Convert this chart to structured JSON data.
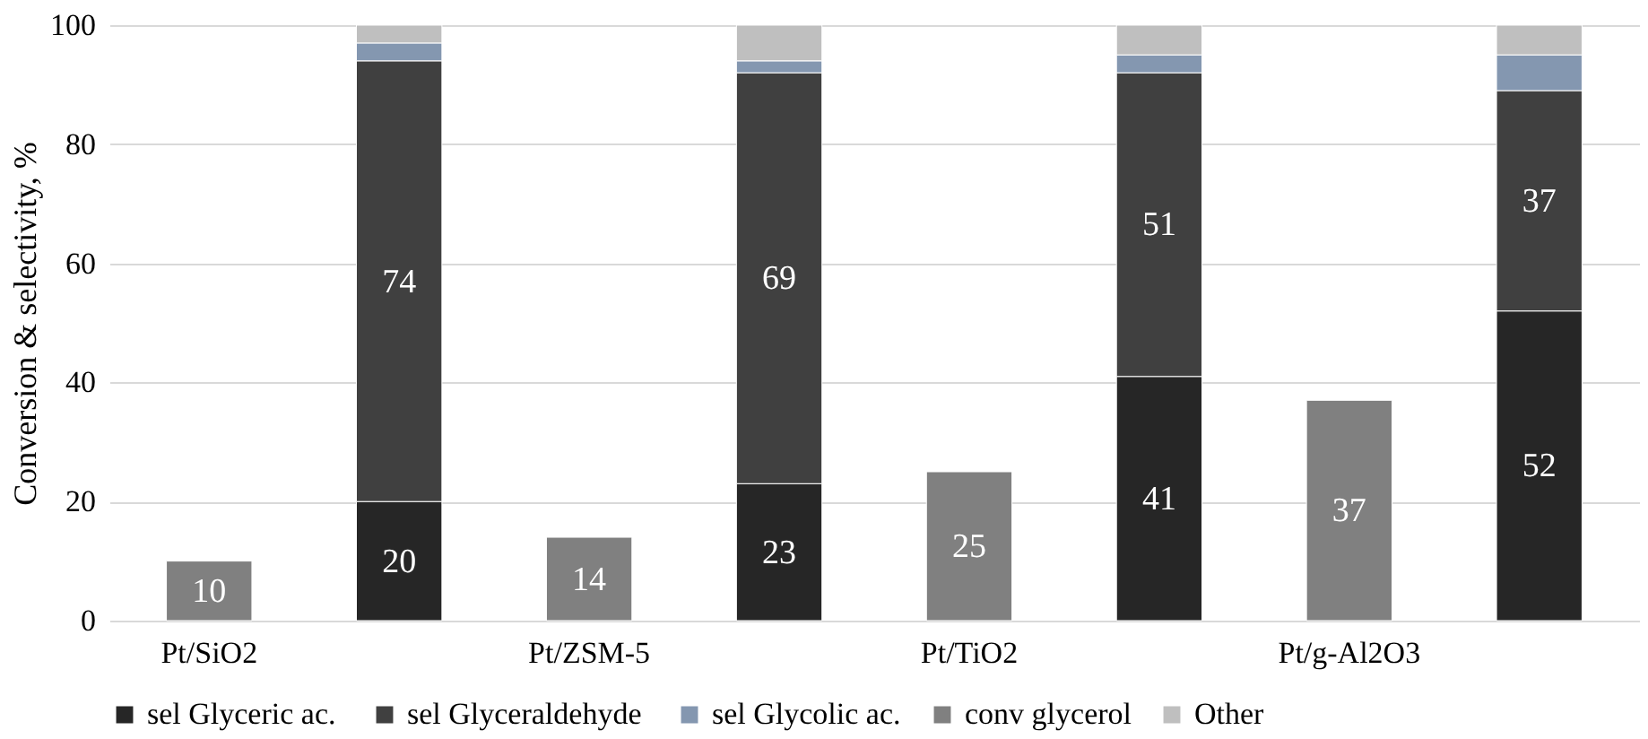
{
  "chart_data": {
    "type": "bar",
    "stacked": true,
    "ylabel": "Conversion & selectivity, %",
    "categories": [
      "Pt/SiO2",
      null,
      "Pt/ZSM-5",
      null,
      "Pt/TiO2",
      null,
      "Pt/g-Al2O3",
      null
    ],
    "series": [
      {
        "name": "sel  Glyceric ac.",
        "color": "#262626",
        "values": [
          null,
          20,
          null,
          23,
          null,
          41,
          null,
          52
        ],
        "value_labels": [
          null,
          "20",
          null,
          "23",
          null,
          "41",
          null,
          "52"
        ]
      },
      {
        "name": "sel  Glyceraldehyde",
        "color": "#404040",
        "values": [
          null,
          74,
          null,
          69,
          null,
          51,
          null,
          37
        ],
        "value_labels": [
          null,
          "74",
          null,
          "69",
          null,
          "51",
          null,
          "37"
        ]
      },
      {
        "name": "sel Glycolic ac.",
        "color": "#8497b0",
        "values": [
          null,
          3,
          null,
          2,
          null,
          3,
          null,
          6
        ]
      },
      {
        "name": "conv glycerol",
        "color": "#808080",
        "values": [
          10,
          null,
          14,
          null,
          25,
          null,
          37,
          null
        ],
        "value_labels": [
          "10",
          null,
          "14",
          null,
          "25",
          null,
          "37",
          null
        ]
      },
      {
        "name": "Other",
        "color": "#bfbfbf",
        "values": [
          null,
          3,
          null,
          6,
          null,
          5,
          null,
          5
        ]
      }
    ],
    "ylim": [
      0,
      100
    ],
    "yticks": [
      0,
      20,
      40,
      60,
      80,
      100
    ],
    "grid": "y",
    "legend": "bottom"
  }
}
